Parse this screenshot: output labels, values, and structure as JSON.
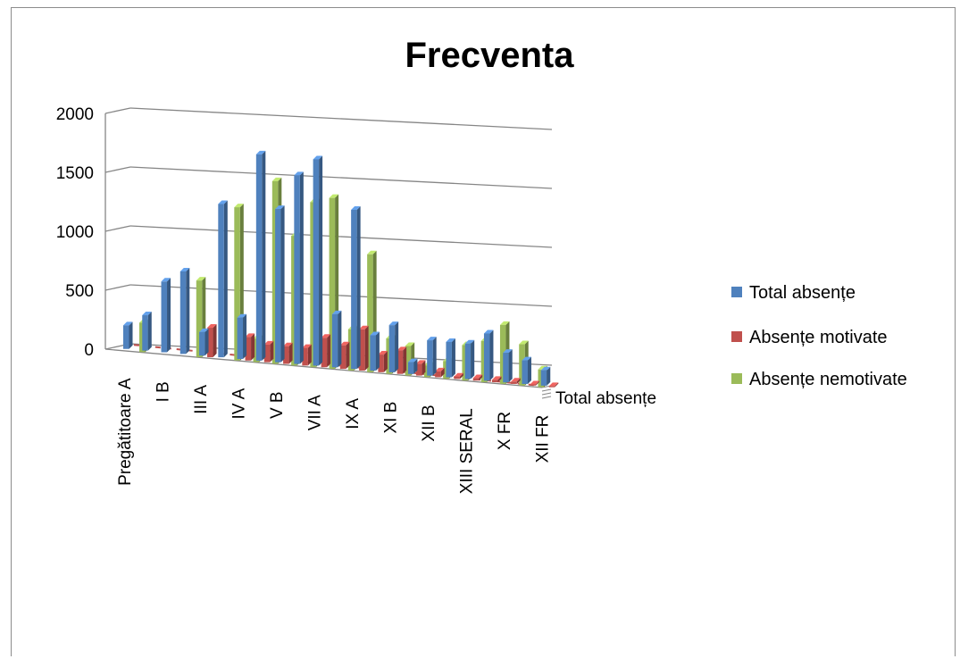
{
  "chart_data": {
    "type": "bar",
    "title": "Frecventa",
    "categories": [
      "Pregătitoare A",
      "",
      "I B",
      "",
      "III A",
      "",
      "IV A",
      "",
      "V B",
      "",
      "VII A",
      "",
      "IX A",
      "",
      "XI B",
      "",
      "XII B",
      "",
      "XIII SERAL",
      "",
      "X FR",
      "",
      "XII FR"
    ],
    "series": [
      {
        "name": "Total absențe",
        "color": "#4F81BD",
        "values": [
          200,
          300,
          600,
          700,
          200,
          1300,
          350,
          1750,
          1300,
          1600,
          1750,
          450,
          1350,
          300,
          400,
          100,
          300,
          300,
          300,
          400,
          250,
          200,
          130
        ]
      },
      {
        "name": "Absențe motivate",
        "color": "#C0504D",
        "values": [
          0,
          0,
          0,
          0,
          250,
          0,
          200,
          150,
          150,
          150,
          250,
          200,
          350,
          150,
          200,
          100,
          50,
          20,
          20,
          20,
          20,
          10,
          10
        ]
      },
      {
        "name": "Absențe nemotivate",
        "color": "#9BBB59",
        "values": [
          250,
          0,
          0,
          650,
          0,
          1300,
          200,
          1550,
          1100,
          1400,
          1450,
          350,
          1000,
          300,
          250,
          100,
          150,
          300,
          350,
          500,
          350,
          150,
          0
        ]
      }
    ],
    "depth_axis_label": "Total absențe",
    "y_ticks": [
      "0",
      "500",
      "1000",
      "1500",
      "2000"
    ],
    "ylim": [
      0,
      2000
    ],
    "grid": true,
    "legend_position": "right"
  }
}
